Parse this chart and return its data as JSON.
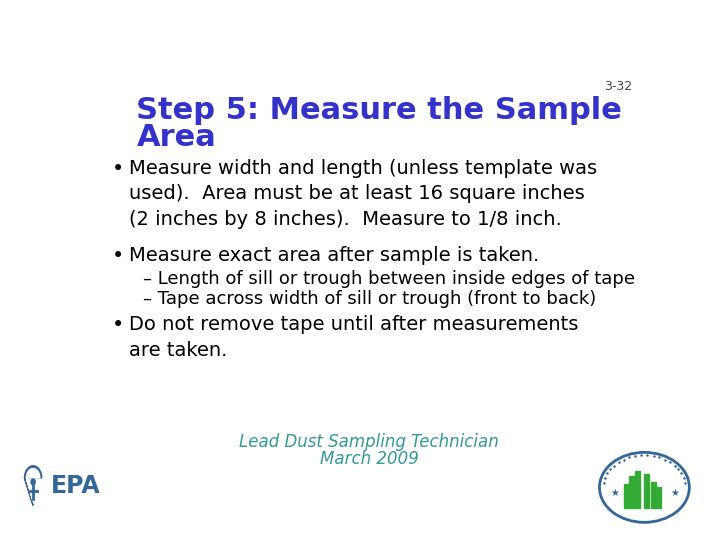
{
  "slide_number": "3-32",
  "title_line1": "Step 5: Measure the Sample",
  "title_line2": "Area",
  "title_color": "#3333CC",
  "title_fontsize": 22,
  "slide_number_fontsize": 9,
  "slide_number_color": "#444444",
  "background_color": "#FFFFFF",
  "bullet_color": "#000000",
  "bullet_fontsize": 14,
  "sub_bullet_fontsize": 13,
  "bullets": [
    "Measure width and length (unless template was\nused).  Area must be at least 16 square inches\n(2 inches by 8 inches).  Measure to 1/8 inch.",
    "Measure exact area after sample is taken."
  ],
  "sub_bullets": [
    "– Length of sill or trough between inside edges of tape",
    "– Tape across width of sill or trough (front to back)"
  ],
  "last_bullet": "Do not remove tape until after measurements\nare taken.",
  "footer_text_line1": "Lead Dust Sampling Technician",
  "footer_text_line2": "March 2009",
  "footer_color": "#339999",
  "footer_fontsize": 12
}
